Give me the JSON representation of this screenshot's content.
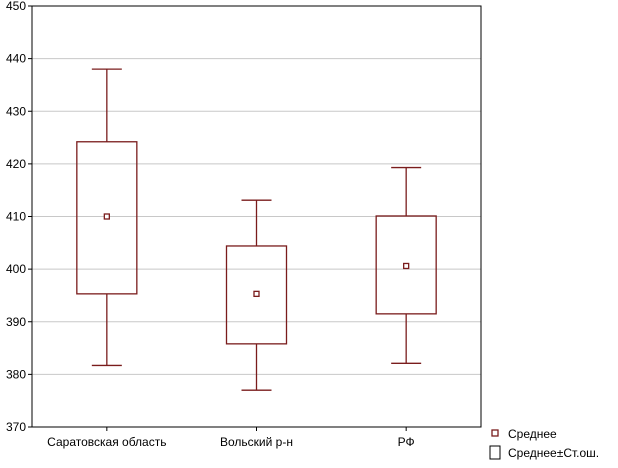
{
  "chart_data": {
    "type": "box",
    "title": "",
    "xlabel": "",
    "ylabel": "",
    "ylim": [
      370,
      450
    ],
    "yticks": [
      370,
      380,
      390,
      400,
      410,
      420,
      430,
      440,
      450
    ],
    "grid": true,
    "legend_placement": "bottom-right",
    "categories": [
      "Саратовская область",
      "Вольский р-н",
      "РФ"
    ],
    "series": [
      {
        "name": "Среднее",
        "values": [
          410.0,
          395.3,
          400.6
        ]
      },
      {
        "name": "Среднее±Ст.ош.",
        "lower": [
          395.3,
          385.8,
          391.5
        ],
        "upper": [
          424.2,
          404.4,
          410.1
        ]
      },
      {
        "name": "",
        "whisker_low": [
          381.7,
          377.0,
          382.1
        ],
        "whisker_high": [
          438.0,
          413.1,
          419.3
        ]
      }
    ],
    "colors": {
      "box": "#7a1c1c",
      "grid": "#c8c8c8",
      "axis": "#000000",
      "text": "#000000"
    }
  }
}
